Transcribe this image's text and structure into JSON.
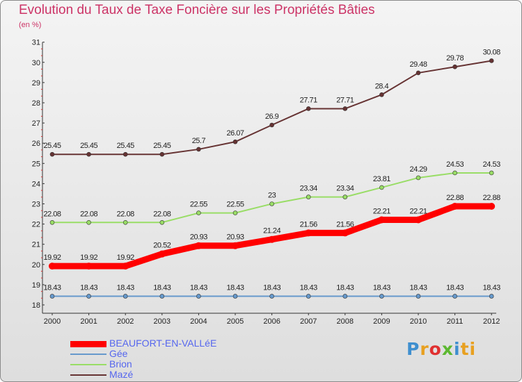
{
  "chart_data": {
    "type": "line",
    "title": "Evolution du Taux de Taxe Foncière sur les Propriétés Bâties",
    "subtitle": "(en %)",
    "x": [
      "2000",
      "2001",
      "2002",
      "2003",
      "2004",
      "2005",
      "2006",
      "2007",
      "2008",
      "2009",
      "2010",
      "2011",
      "2012"
    ],
    "ylim": [
      18,
      31
    ],
    "yticks": [
      "18",
      "19",
      "20",
      "21",
      "22",
      "23",
      "24",
      "25",
      "26",
      "27",
      "28",
      "29",
      "30",
      "31"
    ],
    "grid": false,
    "legend_position": "bottom-left",
    "series": [
      {
        "name": "BEAUFORT-EN-VALLéE",
        "color": "#ff0000",
        "values": [
          19.92,
          19.92,
          19.92,
          20.52,
          20.93,
          20.93,
          21.24,
          21.56,
          21.56,
          22.21,
          22.21,
          22.88,
          22.88
        ],
        "labels": [
          "19.92",
          "19.92",
          "19.92",
          "20.52",
          "20.93",
          "20.93",
          "21.24",
          "21.56",
          "21.56",
          "22.21",
          "22.21",
          "22.88",
          "22.88"
        ]
      },
      {
        "name": "Gée",
        "color": "#6699cc",
        "values": [
          18.43,
          18.43,
          18.43,
          18.43,
          18.43,
          18.43,
          18.43,
          18.43,
          18.43,
          18.43,
          18.43,
          18.43,
          18.43
        ],
        "labels": [
          "18.43",
          "18.43",
          "18.43",
          "18.43",
          "18.43",
          "18.43",
          "18.43",
          "18.43",
          "18.43",
          "18.43",
          "18.43",
          "18.43",
          "18.43"
        ]
      },
      {
        "name": "Brion",
        "color": "#99dd66",
        "values": [
          22.08,
          22.08,
          22.08,
          22.08,
          22.55,
          22.55,
          23,
          23.34,
          23.34,
          23.81,
          24.29,
          24.53,
          24.53
        ],
        "labels": [
          "22.08",
          "22.08",
          "22.08",
          "22.08",
          "22.55",
          "22.55",
          "23",
          "23.34",
          "23.34",
          "23.81",
          "24.29",
          "24.53",
          "24.53"
        ]
      },
      {
        "name": "Mazé",
        "color": "#663333",
        "values": [
          25.45,
          25.45,
          25.45,
          25.45,
          25.7,
          26.07,
          26.9,
          27.71,
          27.71,
          28.4,
          29.48,
          29.78,
          30.08
        ],
        "labels": [
          "25.45",
          "25.45",
          "25.45",
          "25.45",
          "25.7",
          "26.07",
          "26.9",
          "27.71",
          "27.71",
          "28.4",
          "29.48",
          "29.78",
          "30.08"
        ]
      }
    ]
  },
  "logo": {
    "parts": [
      "P",
      "r",
      "o",
      "x",
      "i",
      "ti"
    ]
  }
}
